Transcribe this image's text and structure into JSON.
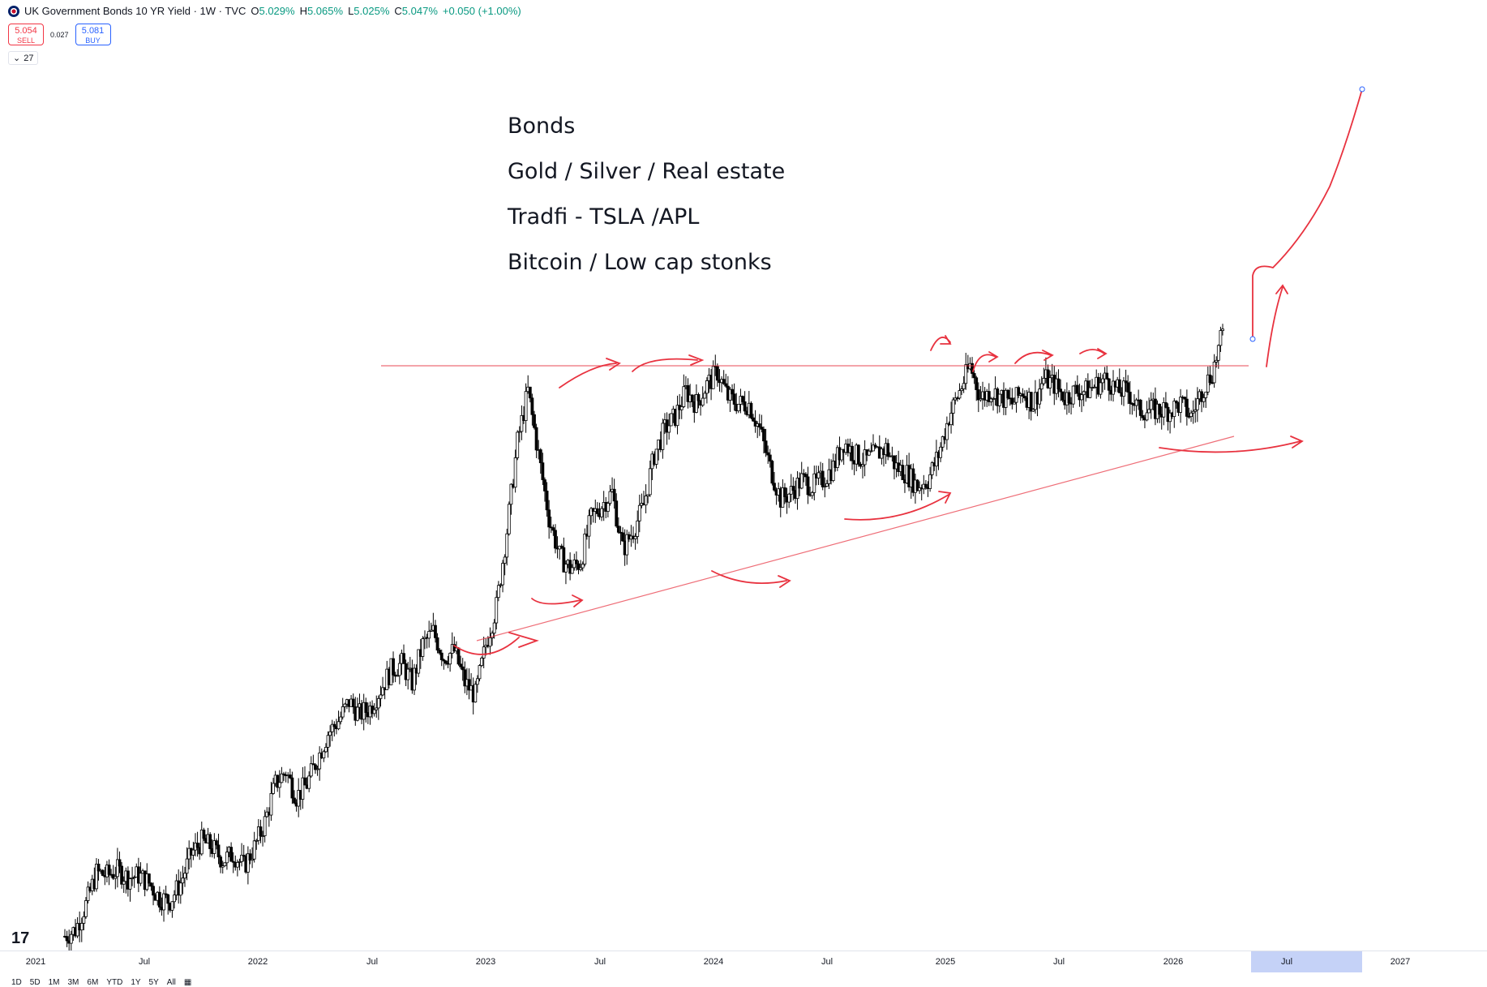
{
  "header": {
    "title": "UK Government Bonds 10 YR Yield · 1W · TVC",
    "open_label": "O",
    "open": "5.029%",
    "high_label": "H",
    "high": "5.065%",
    "low_label": "L",
    "low": "5.025%",
    "close_label": "C",
    "close": "5.047%",
    "change": "+0.050 (+1.00%)",
    "sell_price": "5.054",
    "sell_label": "SELL",
    "spread": "0.027",
    "buy_price": "5.081",
    "buy_label": "BUY",
    "indicator_count": "27"
  },
  "notes": [
    "Bonds",
    "Gold / Silver / Real estate",
    "Tradfi - TSLA /APL",
    "Bitcoin / Low cap stonks"
  ],
  "logo_text": "17",
  "time_axis": [
    "2021",
    "Jul",
    "2022",
    "Jul",
    "2023",
    "Jul",
    "2024",
    "Jul",
    "2025",
    "Jul",
    "2026",
    "Jul",
    "2027"
  ],
  "range_buttons": [
    "1D",
    "5D",
    "1M",
    "3M",
    "6M",
    "YTD",
    "1Y",
    "5Y",
    "All"
  ],
  "colors": {
    "up": "#ffffff",
    "down": "#000000",
    "annotation": "#e8323f",
    "axis_highlight": "#c5d2f7"
  },
  "chart_data": {
    "type": "candlestick",
    "title": "UK Government Bonds 10 YR Yield",
    "interval": "1W",
    "series": [
      {
        "name": "UK Government Bonds 10 YR Yield",
        "x_start": "2021-01",
        "x_end": "2026-03",
        "values": [
          0.3,
          0.35,
          0.55,
          0.8,
          0.78,
          0.82,
          0.76,
          0.78,
          0.72,
          0.6,
          0.58,
          0.72,
          0.95,
          1.05,
          1.0,
          0.9,
          0.95,
          0.85,
          1.0,
          1.2,
          1.5,
          1.6,
          1.4,
          1.5,
          1.7,
          1.9,
          2.0,
          2.15,
          2.05,
          2.1,
          2.25,
          2.4,
          2.45,
          2.3,
          2.6,
          2.7,
          2.5,
          2.55,
          2.3,
          2.2,
          2.6,
          2.9,
          3.5,
          4.2,
          4.6,
          4.1,
          3.6,
          3.3,
          3.2,
          3.25,
          3.6,
          3.7,
          3.8,
          3.35,
          3.5,
          3.7,
          4.1,
          4.3,
          4.4,
          4.6,
          4.5,
          4.65,
          4.75,
          4.55,
          4.5,
          4.5,
          4.3,
          4.0,
          3.75,
          3.8,
          3.9,
          3.85,
          3.9,
          4.0,
          4.2,
          4.1,
          4.05,
          4.1,
          4.15,
          4.0,
          3.95,
          3.85,
          3.9,
          4.1,
          4.4,
          4.6,
          4.8,
          4.55,
          4.6,
          4.55,
          4.5,
          4.6,
          4.5,
          4.7,
          4.65,
          4.55,
          4.6,
          4.6,
          4.65,
          4.7,
          4.6,
          4.6,
          4.45,
          4.45,
          4.45,
          4.45,
          4.5,
          4.4,
          4.6,
          4.75,
          5.05
        ],
        "current": 5.047
      }
    ],
    "annotations": {
      "resistance_level": 4.8,
      "support_trendline": [
        {
          "x": "2023-01",
          "y": 3.25
        },
        {
          "x": "2026-03",
          "y": 4.45
        }
      ],
      "projection": "breakout continuation"
    },
    "x_ticks": [
      "2021",
      "Jul",
      "2022",
      "Jul",
      "2023",
      "Jul",
      "2024",
      "Jul",
      "2025",
      "Jul",
      "2026",
      "Jul",
      "2027"
    ]
  }
}
